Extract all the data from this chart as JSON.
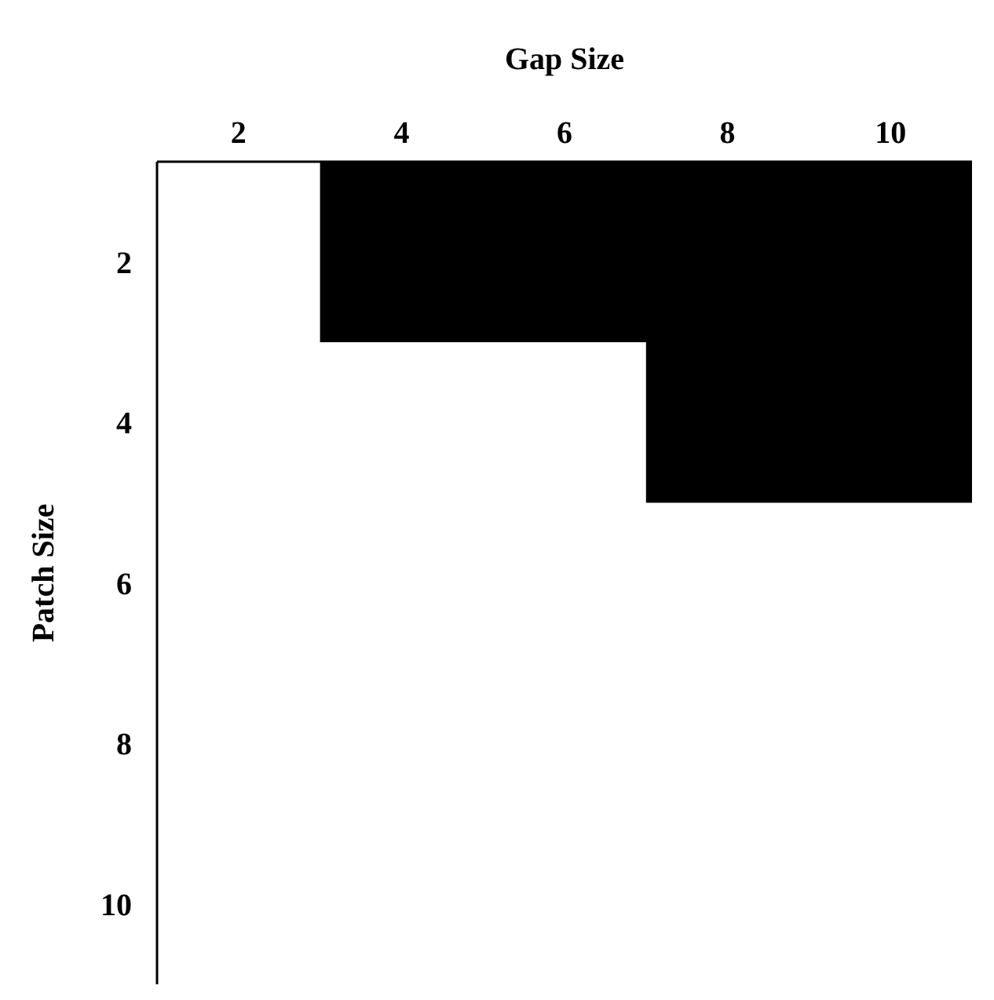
{
  "chart_data": {
    "type": "area",
    "xlabel": "Gap Size",
    "ylabel": "Patch Size",
    "xlim": [
      1,
      11
    ],
    "xticks": [
      2,
      4,
      6,
      8,
      10
    ],
    "ylim": [
      11,
      0.75
    ],
    "yticks": [
      2,
      4,
      6,
      8,
      10
    ],
    "series": [
      {
        "color": "#000000",
        "x": [
          3,
          7,
          7,
          11
        ],
        "values": [
          3,
          3,
          5,
          5
        ]
      }
    ],
    "grid": false
  }
}
